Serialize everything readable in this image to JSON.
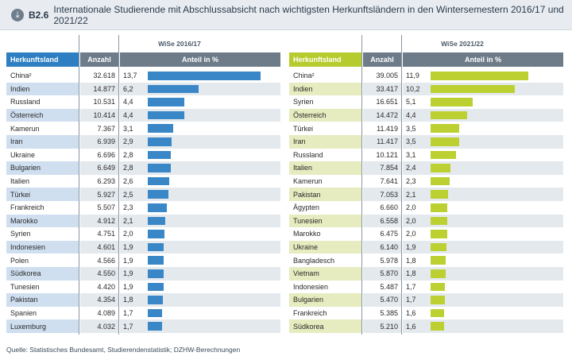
{
  "title": {
    "id": "B2.6",
    "text": "Internationale Studierende mit Abschlussabsicht nach wichtigsten Herkunftsländern in den Wintersemestern 2016/17 und 2021/22"
  },
  "source": "Quelle: Statistisches Bundesamt, Studierendenstatistik; DZHW-Berechnungen",
  "colors": {
    "left_accent": "#2d7fc1",
    "right_accent": "#b6cc2e",
    "header_gray": "#6e7c8a"
  },
  "chart_data": [
    {
      "type": "table",
      "period": "WiSe 2016/17",
      "headers": {
        "land": "Herkunftsland",
        "count": "Anzahl",
        "share": "Anteil in %"
      },
      "max_share": 13.7,
      "rows": [
        {
          "land": "China²",
          "count": "32.618",
          "share": "13,7",
          "value": 13.7
        },
        {
          "land": "Indien",
          "count": "14.877",
          "share": "6,2",
          "value": 6.2
        },
        {
          "land": "Russland",
          "count": "10.531",
          "share": "4,4",
          "value": 4.4
        },
        {
          "land": "Österreich",
          "count": "10.414",
          "share": "4,4",
          "value": 4.4
        },
        {
          "land": "Kamerun",
          "count": "7.367",
          "share": "3,1",
          "value": 3.1
        },
        {
          "land": "Iran",
          "count": "6.939",
          "share": "2,9",
          "value": 2.9
        },
        {
          "land": "Ukraine",
          "count": "6.696",
          "share": "2,8",
          "value": 2.8
        },
        {
          "land": "Bulgarien",
          "count": "6.649",
          "share": "2,8",
          "value": 2.8
        },
        {
          "land": "Italien",
          "count": "6.293",
          "share": "2,6",
          "value": 2.6
        },
        {
          "land": "Türkei",
          "count": "5.927",
          "share": "2,5",
          "value": 2.5
        },
        {
          "land": "Frankreich",
          "count": "5.507",
          "share": "2,3",
          "value": 2.3
        },
        {
          "land": "Marokko",
          "count": "4.912",
          "share": "2,1",
          "value": 2.1
        },
        {
          "land": "Syrien",
          "count": "4.751",
          "share": "2,0",
          "value": 2.0
        },
        {
          "land": "Indonesien",
          "count": "4.601",
          "share": "1,9",
          "value": 1.9
        },
        {
          "land": "Polen",
          "count": "4.566",
          "share": "1,9",
          "value": 1.9
        },
        {
          "land": "Südkorea",
          "count": "4.550",
          "share": "1,9",
          "value": 1.9
        },
        {
          "land": "Tunesien",
          "count": "4.420",
          "share": "1,9",
          "value": 1.9
        },
        {
          "land": "Pakistan",
          "count": "4.354",
          "share": "1,8",
          "value": 1.8
        },
        {
          "land": "Spanien",
          "count": "4.089",
          "share": "1,7",
          "value": 1.7
        },
        {
          "land": "Luxemburg",
          "count": "4.032",
          "share": "1,7",
          "value": 1.7
        }
      ]
    },
    {
      "type": "table",
      "period": "WiSe 2021/22",
      "headers": {
        "land": "Herkunftsland",
        "count": "Anzahl",
        "share": "Anteil in %"
      },
      "max_share": 13.7,
      "rows": [
        {
          "land": "China²",
          "count": "39.005",
          "share": "11,9",
          "value": 11.9
        },
        {
          "land": "Indien",
          "count": "33.417",
          "share": "10,2",
          "value": 10.2
        },
        {
          "land": "Syrien",
          "count": "16.651",
          "share": "5,1",
          "value": 5.1
        },
        {
          "land": "Österreich",
          "count": "14.472",
          "share": "4,4",
          "value": 4.4
        },
        {
          "land": "Türkei",
          "count": "11.419",
          "share": "3,5",
          "value": 3.5
        },
        {
          "land": "Iran",
          "count": "11.417",
          "share": "3,5",
          "value": 3.5
        },
        {
          "land": "Russland",
          "count": "10.121",
          "share": "3,1",
          "value": 3.1
        },
        {
          "land": "Italien",
          "count": "7.854",
          "share": "2,4",
          "value": 2.4
        },
        {
          "land": "Kamerun",
          "count": "7.641",
          "share": "2,3",
          "value": 2.3
        },
        {
          "land": "Pakistan",
          "count": "7.053",
          "share": "2,1",
          "value": 2.1
        },
        {
          "land": "Ägypten",
          "count": "6.660",
          "share": "2,0",
          "value": 2.0
        },
        {
          "land": "Tunesien",
          "count": "6.558",
          "share": "2,0",
          "value": 2.0
        },
        {
          "land": "Marokko",
          "count": "6.475",
          "share": "2,0",
          "value": 2.0
        },
        {
          "land": "Ukraine",
          "count": "6.140",
          "share": "1,9",
          "value": 1.9
        },
        {
          "land": "Bangladesch",
          "count": "5.978",
          "share": "1,8",
          "value": 1.8
        },
        {
          "land": "Vietnam",
          "count": "5.870",
          "share": "1,8",
          "value": 1.8
        },
        {
          "land": "Indonesien",
          "count": "5.487",
          "share": "1,7",
          "value": 1.7
        },
        {
          "land": "Bulgarien",
          "count": "5.470",
          "share": "1,7",
          "value": 1.7
        },
        {
          "land": "Frankreich",
          "count": "5.385",
          "share": "1,6",
          "value": 1.6
        },
        {
          "land": "Südkorea",
          "count": "5.210",
          "share": "1,6",
          "value": 1.6
        }
      ]
    }
  ]
}
